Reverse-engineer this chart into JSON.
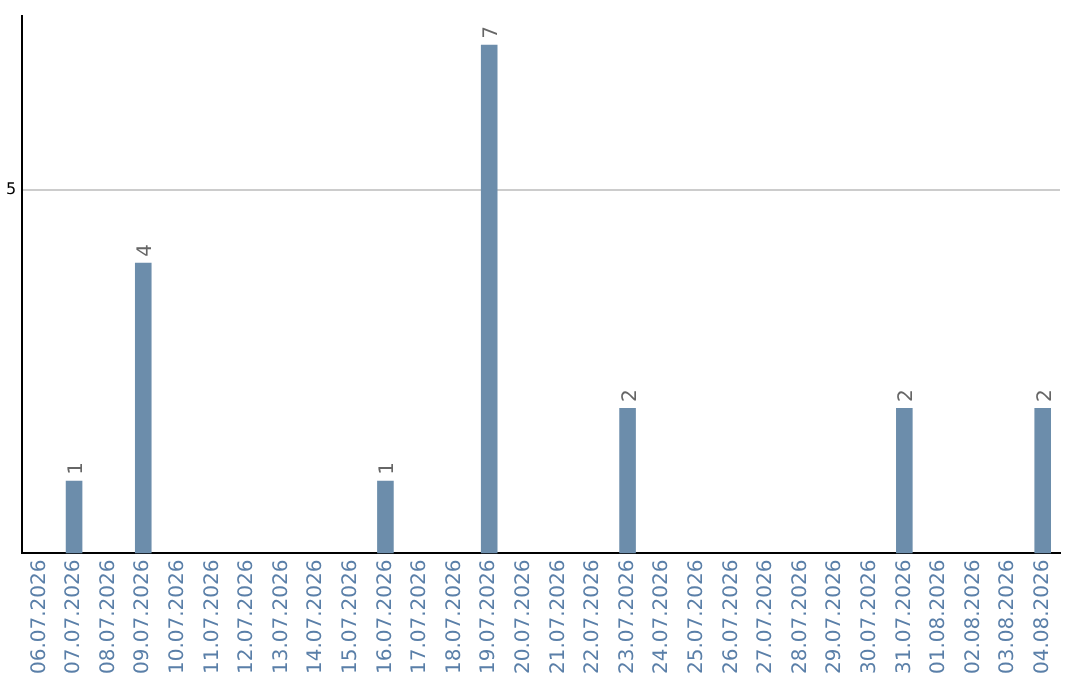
{
  "chart_data": {
    "type": "bar",
    "categories": [
      "06.07.2026",
      "07.07.2026",
      "08.07.2026",
      "09.07.2026",
      "10.07.2026",
      "11.07.2026",
      "12.07.2026",
      "13.07.2026",
      "14.07.2026",
      "15.07.2026",
      "16.07.2026",
      "17.07.2026",
      "18.07.2026",
      "19.07.2026",
      "20.07.2026",
      "21.07.2026",
      "22.07.2026",
      "23.07.2026",
      "24.07.2026",
      "25.07.2026",
      "26.07.2026",
      "27.07.2026",
      "28.07.2026",
      "29.07.2026",
      "30.07.2026",
      "31.07.2026",
      "01.08.2026",
      "02.08.2026",
      "03.08.2026",
      "04.08.2026"
    ],
    "values": [
      0,
      1,
      0,
      4,
      0,
      0,
      0,
      0,
      0,
      0,
      1,
      0,
      0,
      7,
      0,
      0,
      0,
      2,
      0,
      0,
      0,
      0,
      0,
      0,
      0,
      2,
      0,
      0,
      0,
      2
    ],
    "color": "#6c8dab",
    "value_labels": [
      null,
      "1",
      null,
      "4",
      null,
      null,
      null,
      null,
      null,
      null,
      "1",
      null,
      null,
      "7",
      null,
      null,
      null,
      "2",
      null,
      null,
      null,
      null,
      null,
      null,
      null,
      "2",
      null,
      null,
      null,
      "2"
    ],
    "ylim": [
      0,
      7.4
    ],
    "yticks": [
      5
    ],
    "grid": "y",
    "legend": false
  }
}
